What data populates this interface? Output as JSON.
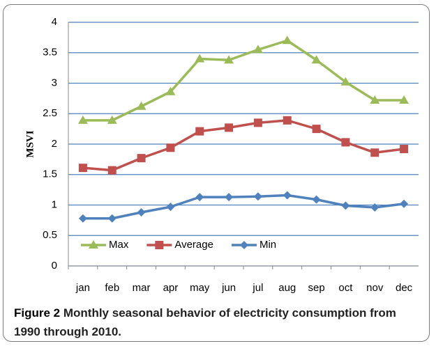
{
  "chart_data": {
    "type": "line",
    "y_label": "MSVI",
    "categories": [
      "jan",
      "feb",
      "mar",
      "apr",
      "may",
      "jun",
      "jul",
      "aug",
      "sep",
      "oct",
      "nov",
      "dec"
    ],
    "series": [
      {
        "name": "Max",
        "color": "#9bbb59",
        "marker": "triangle",
        "values": [
          2.39,
          2.39,
          2.62,
          2.86,
          3.4,
          3.38,
          3.55,
          3.7,
          3.38,
          3.02,
          2.72,
          2.72
        ]
      },
      {
        "name": "Average",
        "color": "#c0504d",
        "marker": "square",
        "values": [
          1.61,
          1.57,
          1.77,
          1.94,
          2.21,
          2.27,
          2.35,
          2.39,
          2.25,
          2.03,
          1.86,
          1.92
        ]
      },
      {
        "name": "Min",
        "color": "#4f81bd",
        "marker": "diamond",
        "values": [
          0.78,
          0.78,
          0.88,
          0.97,
          1.13,
          1.13,
          1.14,
          1.16,
          1.09,
          0.99,
          0.96,
          1.02
        ]
      }
    ],
    "ylim": [
      0,
      4
    ],
    "yticks": [
      0,
      0.5,
      1,
      1.5,
      2,
      2.5,
      3,
      3.5,
      4
    ],
    "grid": true,
    "legend": "bottom-left"
  },
  "caption": {
    "label": "Figure 2",
    "text": "Monthly seasonal behavior of electricity consumption from 1990 through 2010."
  }
}
